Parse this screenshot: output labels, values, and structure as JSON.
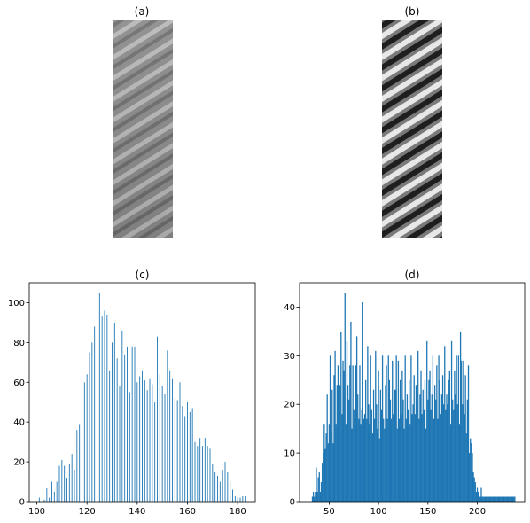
{
  "panels": {
    "a": {
      "title": "(a)"
    },
    "b": {
      "title": "(b)"
    }
  },
  "chart_data": [
    {
      "panel": "c",
      "type": "bar",
      "title": "(c)",
      "xlabel": "",
      "ylabel": "",
      "xlim": [
        97,
        187
      ],
      "ylim": [
        0,
        110
      ],
      "xticks": [
        100,
        120,
        140,
        160,
        180
      ],
      "yticks": [
        0,
        20,
        40,
        60,
        80,
        100
      ],
      "color": "#1f77b4",
      "grid": false,
      "x": [
        101,
        103,
        104,
        105,
        106,
        107,
        108,
        109,
        110,
        111,
        112,
        113,
        114,
        115,
        116,
        117,
        118,
        119,
        120,
        121,
        122,
        123,
        124,
        125,
        126,
        127,
        128,
        129,
        130,
        131,
        132,
        133,
        134,
        135,
        136,
        137,
        138,
        139,
        140,
        141,
        142,
        143,
        144,
        145,
        146,
        147,
        148,
        149,
        150,
        151,
        152,
        153,
        154,
        155,
        156,
        157,
        158,
        159,
        160,
        161,
        162,
        163,
        164,
        165,
        166,
        167,
        168,
        169,
        170,
        171,
        172,
        173,
        174,
        175,
        176,
        177,
        178,
        179,
        180,
        181,
        182,
        183
      ],
      "values": [
        2,
        1,
        7,
        2,
        10,
        5,
        10,
        18,
        21,
        18,
        12,
        19,
        24,
        16,
        36,
        39,
        58,
        60,
        64,
        75,
        80,
        88,
        78,
        105,
        93,
        96,
        94,
        66,
        80,
        90,
        72,
        58,
        86,
        74,
        78,
        55,
        78,
        78,
        60,
        63,
        66,
        61,
        56,
        62,
        59,
        50,
        83,
        64,
        58,
        54,
        76,
        66,
        62,
        52,
        51,
        60,
        48,
        43,
        50,
        45,
        47,
        30,
        28,
        32,
        28,
        32,
        28,
        27,
        19,
        15,
        13,
        10,
        16,
        20,
        15,
        10,
        6,
        3,
        2,
        2,
        3,
        3
      ]
    },
    {
      "panel": "d",
      "type": "bar",
      "title": "(d)",
      "xlabel": "",
      "ylabel": "",
      "xlim": [
        20,
        248
      ],
      "ylim": [
        0,
        45
      ],
      "xticks": [
        50,
        100,
        150,
        200
      ],
      "yticks": [
        0,
        10,
        20,
        30,
        40
      ],
      "color": "#1f77b4",
      "grid": false,
      "x": [
        33,
        34,
        35,
        36,
        37,
        38,
        39,
        40,
        41,
        42,
        43,
        44,
        45,
        46,
        47,
        48,
        49,
        50,
        51,
        52,
        53,
        54,
        55,
        56,
        57,
        58,
        59,
        60,
        61,
        62,
        63,
        64,
        65,
        66,
        67,
        68,
        69,
        70,
        71,
        72,
        73,
        74,
        75,
        76,
        77,
        78,
        79,
        80,
        81,
        82,
        83,
        84,
        85,
        86,
        87,
        88,
        89,
        90,
        91,
        92,
        93,
        94,
        95,
        96,
        97,
        98,
        99,
        100,
        101,
        102,
        103,
        104,
        105,
        106,
        107,
        108,
        109,
        110,
        111,
        112,
        113,
        114,
        115,
        116,
        117,
        118,
        119,
        120,
        121,
        122,
        123,
        124,
        125,
        126,
        127,
        128,
        129,
        130,
        131,
        132,
        133,
        134,
        135,
        136,
        137,
        138,
        139,
        140,
        141,
        142,
        143,
        144,
        145,
        146,
        147,
        148,
        149,
        150,
        151,
        152,
        153,
        154,
        155,
        156,
        157,
        158,
        159,
        160,
        161,
        162,
        163,
        164,
        165,
        166,
        167,
        168,
        169,
        170,
        171,
        172,
        173,
        174,
        175,
        176,
        177,
        178,
        179,
        180,
        181,
        182,
        183,
        184,
        185,
        186,
        187,
        188,
        189,
        190,
        191,
        192,
        193,
        194,
        195,
        196,
        197,
        198,
        199,
        200,
        201,
        202,
        203,
        204,
        205,
        206,
        207,
        208,
        209,
        210,
        211,
        212,
        213,
        214,
        215,
        216,
        217,
        218,
        219,
        220,
        221,
        222,
        223,
        224,
        225,
        226,
        227,
        228,
        229,
        230,
        231,
        232,
        233,
        234,
        235,
        236,
        237,
        238
      ],
      "values": [
        1,
        2,
        1,
        2,
        7,
        2,
        5,
        6,
        2,
        4,
        8,
        10,
        16,
        11,
        14,
        22,
        12,
        16,
        30,
        14,
        23,
        12,
        26,
        31,
        16,
        24,
        28,
        14,
        24,
        35,
        18,
        29,
        27,
        43,
        16,
        33,
        24,
        21,
        28,
        37,
        15,
        28,
        19,
        17,
        28,
        34,
        22,
        17,
        28,
        16,
        19,
        41,
        17,
        18,
        25,
        17,
        32,
        20,
        16,
        30,
        19,
        14,
        23,
        17,
        31,
        20,
        15,
        27,
        13,
        23,
        19,
        30,
        17,
        15,
        24,
        28,
        17,
        30,
        25,
        21,
        17,
        29,
        18,
        23,
        23,
        30,
        15,
        29,
        17,
        25,
        18,
        27,
        21,
        15,
        30,
        17,
        22,
        19,
        25,
        16,
        30,
        18,
        20,
        26,
        18,
        24,
        22,
        31,
        17,
        22,
        27,
        18,
        23,
        19,
        25,
        15,
        33,
        21,
        25,
        27,
        19,
        22,
        30,
        17,
        24,
        21,
        28,
        17,
        30,
        25,
        18,
        22,
        26,
        20,
        32,
        19,
        22,
        20,
        25,
        27,
        16,
        33,
        21,
        19,
        27,
        22,
        30,
        20,
        30,
        16,
        35,
        29,
        20,
        29,
        18,
        26,
        14,
        21,
        28,
        10,
        13,
        12,
        10,
        6,
        5,
        4,
        2,
        3,
        2,
        1,
        1,
        3,
        1,
        1,
        1,
        1,
        1,
        1,
        1,
        1,
        1,
        1,
        1,
        1,
        1,
        1,
        1,
        1,
        1,
        1,
        1,
        1,
        1,
        1,
        1,
        1,
        1,
        1,
        1,
        1,
        1,
        1,
        1,
        1,
        1,
        1
      ]
    }
  ]
}
